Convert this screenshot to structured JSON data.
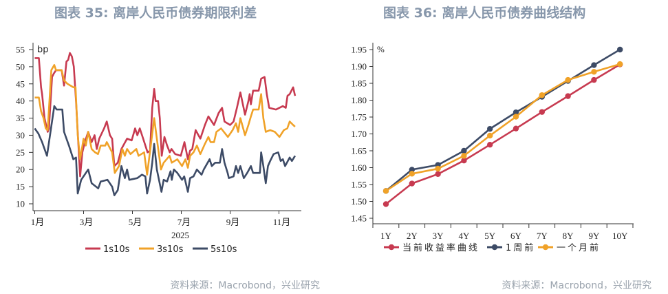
{
  "colors": {
    "red": "#c73a50",
    "orange": "#f0a228",
    "navy": "#3d4b66",
    "title": "#8797ab"
  },
  "chart_data": [
    {
      "type": "line",
      "title": "图表 35: 离岸人民币债券期限利差",
      "ylabel": "bp",
      "xlabel": "2025",
      "ylim": [
        10,
        55
      ],
      "yticks": [
        "10",
        "15",
        "20",
        "25",
        "30",
        "35",
        "40",
        "45",
        "50",
        "55"
      ],
      "xticks": [
        {
          "m": 1,
          "label": "1月"
        },
        {
          "m": 3,
          "label": "3月"
        },
        {
          "m": 5,
          "label": "5月"
        },
        {
          "m": 7,
          "label": "7月"
        },
        {
          "m": 9,
          "label": "9月"
        },
        {
          "m": 11,
          "label": "11月"
        }
      ],
      "x_unit": "month of 2025 (1.0 = Jan 1)",
      "legend_position": "bottom",
      "series": [
        {
          "name": "1s10s",
          "color": "red",
          "points": [
            [
              1.0,
              52.5
            ],
            [
              1.17,
              52.5
            ],
            [
              1.26,
              44
            ],
            [
              1.3,
              42
            ],
            [
              1.4,
              35
            ],
            [
              1.53,
              31
            ],
            [
              1.58,
              32
            ],
            [
              1.71,
              47
            ],
            [
              1.78,
              48
            ],
            [
              1.87,
              49
            ],
            [
              2.1,
              49
            ],
            [
              2.2,
              44.5
            ],
            [
              2.3,
              51.5
            ],
            [
              2.37,
              52
            ],
            [
              2.44,
              54
            ],
            [
              2.52,
              53
            ],
            [
              2.6,
              50
            ],
            [
              2.69,
              40
            ],
            [
              2.86,
              18
            ],
            [
              2.95,
              25
            ],
            [
              3.05,
              28
            ],
            [
              3.19,
              31
            ],
            [
              3.33,
              28
            ],
            [
              3.45,
              30
            ],
            [
              3.54,
              26
            ],
            [
              3.64,
              29
            ],
            [
              3.84,
              32
            ],
            [
              3.95,
              34
            ],
            [
              4.08,
              30
            ],
            [
              4.17,
              29
            ],
            [
              4.26,
              21
            ],
            [
              4.4,
              22
            ],
            [
              4.55,
              26
            ],
            [
              4.78,
              29
            ],
            [
              4.97,
              28.5
            ],
            [
              5.11,
              32
            ],
            [
              5.2,
              30
            ],
            [
              5.3,
              32
            ],
            [
              5.44,
              29
            ],
            [
              5.62,
              25
            ],
            [
              5.72,
              25.5
            ],
            [
              5.81,
              38
            ],
            [
              5.89,
              43.5
            ],
            [
              5.95,
              40
            ],
            [
              6.05,
              40
            ],
            [
              6.12,
              35
            ],
            [
              6.2,
              24
            ],
            [
              6.31,
              29.5
            ],
            [
              6.42,
              27
            ],
            [
              6.53,
              25
            ],
            [
              6.6,
              26
            ],
            [
              6.75,
              24.5
            ],
            [
              6.98,
              24
            ],
            [
              7.13,
              28
            ],
            [
              7.27,
              23
            ],
            [
              7.36,
              25.5
            ],
            [
              7.45,
              26
            ],
            [
              7.59,
              31.5
            ],
            [
              7.78,
              29
            ],
            [
              7.97,
              33
            ],
            [
              8.11,
              35.5
            ],
            [
              8.34,
              33
            ],
            [
              8.53,
              36.5
            ],
            [
              8.67,
              38
            ],
            [
              8.77,
              34
            ],
            [
              9.0,
              33
            ],
            [
              9.14,
              34
            ],
            [
              9.28,
              38
            ],
            [
              9.42,
              42.5
            ],
            [
              9.61,
              36
            ],
            [
              9.75,
              40
            ],
            [
              9.8,
              42
            ],
            [
              9.85,
              39
            ],
            [
              9.94,
              43
            ],
            [
              10.17,
              43
            ],
            [
              10.27,
              46.5
            ],
            [
              10.41,
              47
            ],
            [
              10.5,
              42
            ],
            [
              10.6,
              38
            ],
            [
              10.88,
              37.5
            ],
            [
              11.16,
              38.5
            ],
            [
              11.28,
              38
            ],
            [
              11.35,
              41.5
            ],
            [
              11.44,
              42
            ],
            [
              11.58,
              44
            ],
            [
              11.66,
              41.5
            ]
          ]
        },
        {
          "name": "3s10s",
          "color": "orange",
          "points": [
            [
              1.0,
              41
            ],
            [
              1.17,
              41
            ],
            [
              1.26,
              37
            ],
            [
              1.36,
              35
            ],
            [
              1.45,
              32
            ],
            [
              1.53,
              31.5
            ],
            [
              1.68,
              49
            ],
            [
              1.8,
              50.5
            ],
            [
              1.87,
              49
            ],
            [
              2.1,
              49
            ],
            [
              2.2,
              46
            ],
            [
              2.34,
              45
            ],
            [
              2.58,
              44
            ],
            [
              2.67,
              44
            ],
            [
              2.76,
              30
            ],
            [
              2.86,
              23
            ],
            [
              3.0,
              29
            ],
            [
              3.09,
              27
            ],
            [
              3.19,
              31
            ],
            [
              3.33,
              26
            ],
            [
              3.47,
              25
            ],
            [
              3.59,
              24.5
            ],
            [
              3.7,
              27
            ],
            [
              3.89,
              27
            ],
            [
              3.95,
              28
            ],
            [
              4.17,
              25
            ],
            [
              4.28,
              19
            ],
            [
              4.45,
              21
            ],
            [
              4.59,
              26
            ],
            [
              4.69,
              24
            ],
            [
              4.78,
              26
            ],
            [
              4.92,
              24.5
            ],
            [
              5.16,
              26
            ],
            [
              5.25,
              24
            ],
            [
              5.48,
              25
            ],
            [
              5.6,
              18.5
            ],
            [
              5.77,
              28
            ],
            [
              5.89,
              35
            ],
            [
              6.0,
              29
            ],
            [
              6.17,
              20
            ],
            [
              6.28,
              22
            ],
            [
              6.52,
              24
            ],
            [
              6.61,
              22
            ],
            [
              6.84,
              23
            ],
            [
              7.03,
              21
            ],
            [
              7.17,
              23
            ],
            [
              7.27,
              20.5
            ],
            [
              7.36,
              24
            ],
            [
              7.5,
              25
            ],
            [
              7.64,
              27
            ],
            [
              7.78,
              24.5
            ],
            [
              7.97,
              27.5
            ],
            [
              8.11,
              29.5
            ],
            [
              8.2,
              28
            ],
            [
              8.34,
              28
            ],
            [
              8.44,
              31
            ],
            [
              8.63,
              32
            ],
            [
              8.91,
              29.5
            ],
            [
              9.1,
              31.5
            ],
            [
              9.24,
              33.5
            ],
            [
              9.33,
              31
            ],
            [
              9.42,
              35
            ],
            [
              9.61,
              30
            ],
            [
              9.75,
              33
            ],
            [
              9.85,
              35.5
            ],
            [
              9.94,
              37.5
            ],
            [
              10.17,
              37.5
            ],
            [
              10.27,
              42
            ],
            [
              10.36,
              35
            ],
            [
              10.46,
              31
            ],
            [
              10.64,
              31.5
            ],
            [
              10.83,
              31
            ],
            [
              11.02,
              29.5
            ],
            [
              11.2,
              31.5
            ],
            [
              11.34,
              32
            ],
            [
              11.44,
              34
            ],
            [
              11.58,
              33
            ],
            [
              11.66,
              32.5
            ]
          ]
        },
        {
          "name": "5s10s",
          "color": "navy",
          "points": [
            [
              1.0,
              32
            ],
            [
              1.15,
              30.5
            ],
            [
              1.3,
              28
            ],
            [
              1.5,
              24
            ],
            [
              1.8,
              38.5
            ],
            [
              1.9,
              37.5
            ],
            [
              2.13,
              37.5
            ],
            [
              2.2,
              31
            ],
            [
              2.4,
              27
            ],
            [
              2.58,
              23
            ],
            [
              2.69,
              23.5
            ],
            [
              2.76,
              13
            ],
            [
              2.9,
              17
            ],
            [
              3.19,
              20
            ],
            [
              3.33,
              16
            ],
            [
              3.6,
              14.5
            ],
            [
              3.7,
              16.5
            ],
            [
              3.98,
              17
            ],
            [
              4.17,
              15
            ],
            [
              4.26,
              12.5
            ],
            [
              4.4,
              14
            ],
            [
              4.55,
              21
            ],
            [
              4.69,
              17.5
            ],
            [
              4.78,
              20
            ],
            [
              4.87,
              17
            ],
            [
              5.2,
              17.5
            ],
            [
              5.39,
              18.5
            ],
            [
              5.53,
              18
            ],
            [
              5.6,
              13
            ],
            [
              5.72,
              17
            ],
            [
              5.81,
              22
            ],
            [
              5.89,
              27.5
            ],
            [
              6.0,
              20
            ],
            [
              6.19,
              13.5
            ],
            [
              6.28,
              17
            ],
            [
              6.42,
              16.5
            ],
            [
              6.56,
              19.5
            ],
            [
              6.61,
              17
            ],
            [
              6.7,
              20
            ],
            [
              6.84,
              19
            ],
            [
              7.03,
              17
            ],
            [
              7.12,
              18
            ],
            [
              7.27,
              13.5
            ],
            [
              7.36,
              17.5
            ],
            [
              7.5,
              18
            ],
            [
              7.64,
              20
            ],
            [
              7.83,
              18.5
            ],
            [
              7.92,
              20
            ],
            [
              8.16,
              23
            ],
            [
              8.25,
              21
            ],
            [
              8.39,
              22
            ],
            [
              8.58,
              22
            ],
            [
              8.67,
              26
            ],
            [
              8.77,
              22
            ],
            [
              8.9,
              19
            ],
            [
              8.95,
              17.5
            ],
            [
              9.14,
              18
            ],
            [
              9.24,
              21
            ],
            [
              9.33,
              19
            ],
            [
              9.42,
              21
            ],
            [
              9.56,
              17.5
            ],
            [
              9.7,
              19
            ],
            [
              9.85,
              21
            ],
            [
              9.94,
              19
            ],
            [
              10.22,
              19
            ],
            [
              10.27,
              25
            ],
            [
              10.36,
              21
            ],
            [
              10.46,
              16
            ],
            [
              10.55,
              21
            ],
            [
              10.64,
              22.5
            ],
            [
              10.78,
              24.5
            ],
            [
              10.97,
              25
            ],
            [
              11.07,
              22.5
            ],
            [
              11.16,
              23
            ],
            [
              11.25,
              21
            ],
            [
              11.44,
              23.5
            ],
            [
              11.53,
              22.5
            ],
            [
              11.66,
              24
            ]
          ]
        }
      ]
    },
    {
      "type": "line",
      "title": "图表 36: 离岸人民币债券曲线结构",
      "ylabel": "%",
      "ylim": [
        1.45,
        1.95
      ],
      "yticks": [
        "1.45",
        "1.50",
        "1.55",
        "1.60",
        "1.65",
        "1.70",
        "1.75",
        "1.80",
        "1.85",
        "1.90",
        "1.95"
      ],
      "categories": [
        "1Y",
        "2Y",
        "3Y",
        "4Y",
        "5Y",
        "6Y",
        "7Y",
        "8Y",
        "9Y",
        "10Y"
      ],
      "legend_position": "bottom",
      "series": [
        {
          "name": "当前收益率曲线",
          "color": "red",
          "values": [
            1.492,
            1.553,
            1.581,
            1.621,
            1.668,
            1.716,
            1.765,
            1.812,
            1.86,
            1.906
          ]
        },
        {
          "name": "1周前",
          "color": "navy",
          "values": [
            1.531,
            1.594,
            1.608,
            1.65,
            1.715,
            1.764,
            1.81,
            1.857,
            1.904,
            1.95
          ]
        },
        {
          "name": "一个月前",
          "color": "orange",
          "values": [
            1.531,
            1.582,
            1.597,
            1.635,
            1.695,
            1.751,
            1.815,
            1.86,
            1.884,
            1.907
          ]
        }
      ]
    }
  ],
  "source_left": "资料来源：Macrobond，兴业研究",
  "source_right": "资料来源：Macrobond，兴业研究"
}
